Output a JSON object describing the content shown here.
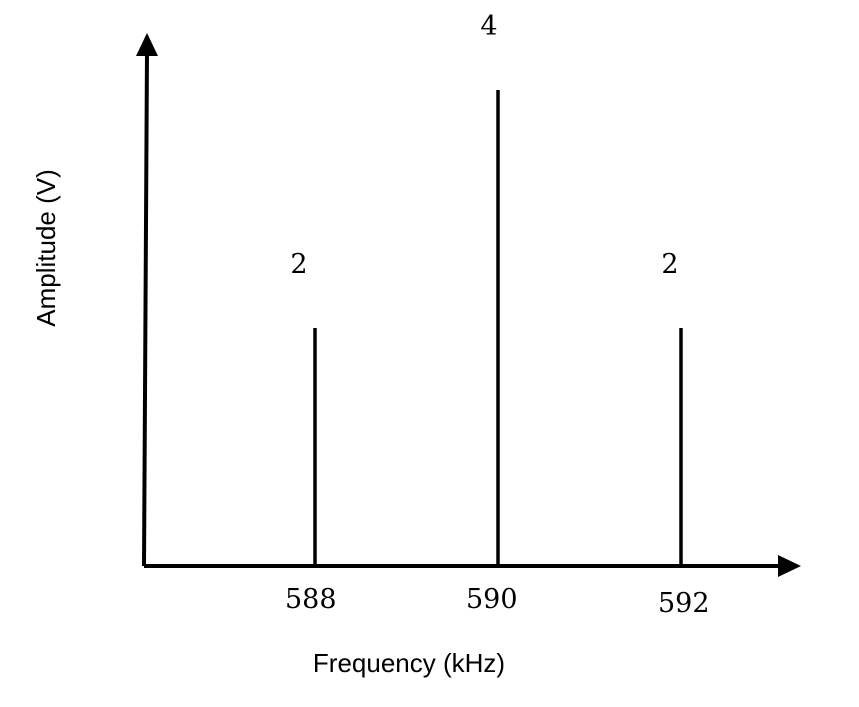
{
  "chart_data": {
    "type": "bar",
    "style": "spectral-lines",
    "x": [
      588,
      590,
      592
    ],
    "categories": [
      "588",
      "590",
      "592"
    ],
    "values": [
      2,
      4,
      2
    ],
    "data_labels": [
      "2",
      "4",
      "2"
    ],
    "xlabel": "Frequency (kHz)",
    "ylabel": "Amplitude (V)",
    "title": "",
    "grid": false,
    "ylim": [
      0,
      5.1
    ],
    "axis_arrows": true,
    "line_color": "#000000"
  }
}
